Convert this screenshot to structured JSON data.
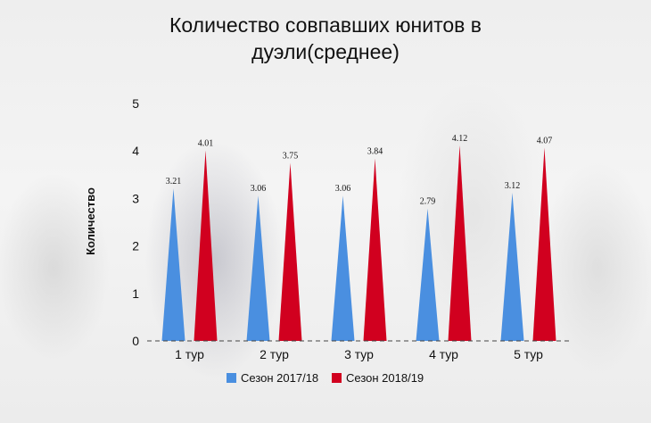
{
  "chart_data": {
    "type": "bar",
    "title_lines": [
      "Количество совпавших юнитов в",
      "дуэли(среднее)"
    ],
    "xlabel": "",
    "ylabel": "Количество",
    "categories": [
      "1 тур",
      "2 тур",
      "3 тур",
      "4 тур",
      "5 тур"
    ],
    "series": [
      {
        "name": "Сезон 2017/18",
        "color": "#4a8fe0",
        "values": [
          3.21,
          3.06,
          3.06,
          2.79,
          3.12
        ]
      },
      {
        "name": "Сезон 2018/19",
        "color": "#d1001f",
        "values": [
          4.01,
          3.75,
          3.84,
          4.12,
          4.07
        ]
      }
    ],
    "ylim": [
      0,
      5
    ],
    "yticks": [
      0,
      1,
      2,
      3,
      4,
      5
    ],
    "grid": false,
    "legend_position": "bottom",
    "mark_shape": "triangle"
  }
}
